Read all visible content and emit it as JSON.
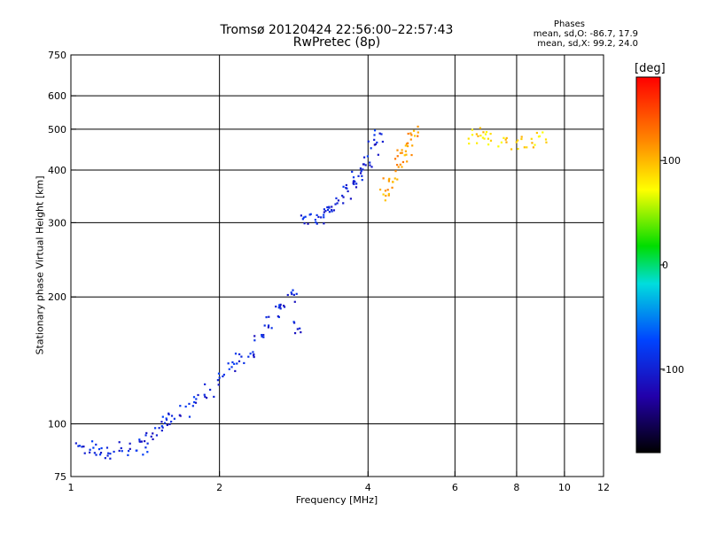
{
  "title_line1": "Tromsø 20120424 22:56:00–22:57:43",
  "title_line2": "RwPretec (8p)",
  "phases": {
    "heading": "Phases",
    "line1": "mean, sd,O: -86.7, 17.9",
    "line2": "mean, sd,X:  99.2, 24.0"
  },
  "colorbar": {
    "label": "[deg]",
    "ticks": [
      "100",
      "0",
      "-100"
    ],
    "min": -180,
    "max": 180
  },
  "chart_data": {
    "type": "scatter",
    "xlabel": "Frequency [MHz]",
    "ylabel": "Stationary phase Virtual Height [km]",
    "xscale": "log",
    "yscale": "log",
    "xlim": [
      1,
      12
    ],
    "ylim": [
      75,
      750
    ],
    "xticks": [
      1,
      2,
      4,
      6,
      8,
      10,
      12
    ],
    "yticks": [
      75,
      100,
      200,
      300,
      400,
      500,
      600,
      750
    ],
    "grid": true,
    "color_encodes": "phase (deg)",
    "series": [
      {
        "x": [
          1.05,
          1.1,
          1.15,
          1.2,
          1.28,
          1.35,
          1.4,
          1.45,
          1.5,
          1.55,
          1.6,
          1.7,
          1.8,
          1.9,
          2.0,
          2.1,
          2.2,
          2.3,
          2.4,
          2.5,
          2.6,
          2.7,
          2.8,
          2.9,
          3.0,
          3.1,
          3.2,
          3.3,
          3.4,
          3.5,
          3.6,
          3.7,
          3.8,
          3.9,
          4.0,
          4.1,
          4.2
        ],
        "y": [
          87,
          88,
          86,
          85,
          87,
          89,
          88,
          92,
          96,
          100,
          104,
          108,
          113,
          120,
          128,
          135,
          142,
          150,
          160,
          175,
          185,
          195,
          200,
          170,
          300,
          305,
          310,
          320,
          330,
          340,
          355,
          370,
          385,
          400,
          420,
          450,
          480
        ],
        "phase_deg": -95
      },
      {
        "x": [
          4.3,
          4.4,
          4.5,
          4.6,
          4.7,
          4.8,
          4.9,
          5.0
        ],
        "y": [
          350,
          370,
          390,
          410,
          430,
          450,
          470,
          500
        ],
        "phase_deg": 110
      },
      {
        "x": [
          6.5,
          6.8,
          7.0,
          7.5,
          8.0,
          8.5,
          9.0
        ],
        "y": [
          480,
          485,
          475,
          470,
          465,
          470,
          475
        ],
        "phase_deg": 90
      }
    ]
  }
}
